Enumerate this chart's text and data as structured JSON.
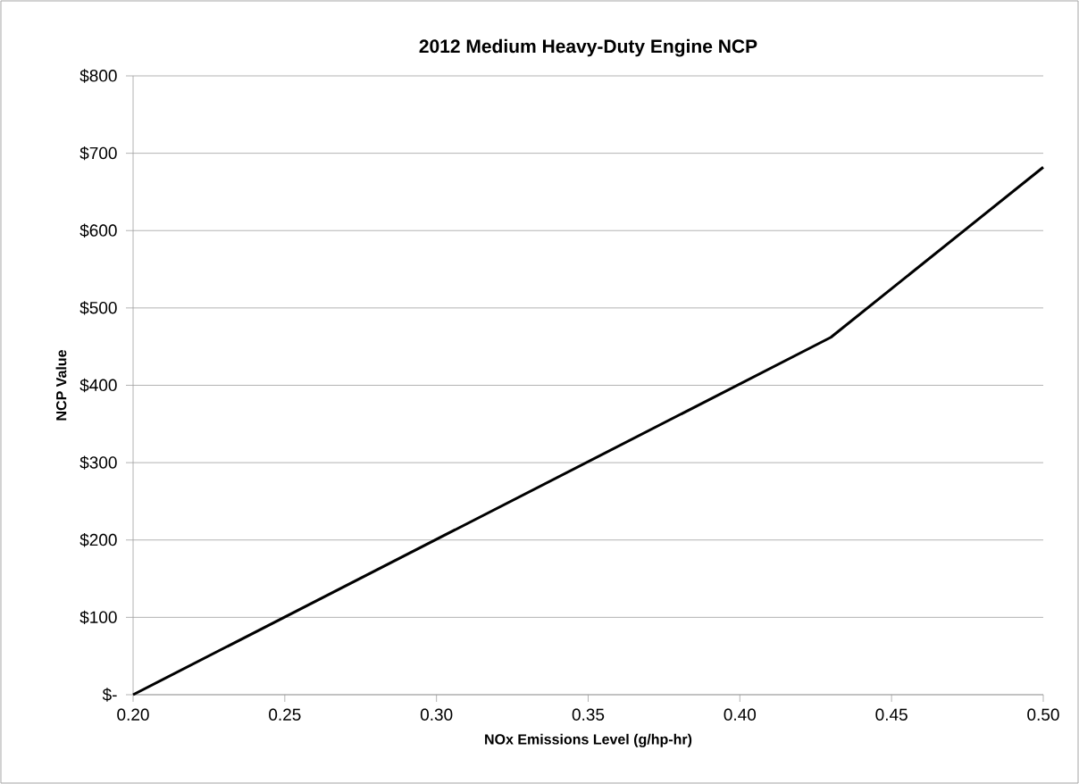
{
  "chart_data": {
    "type": "line",
    "title": "2012 Medium Heavy-Duty Engine NCP",
    "xlabel": "NOx Emissions Level (g/hp-hr)",
    "ylabel": "NCP Value",
    "x": [
      0.2,
      0.43,
      0.5
    ],
    "series": [
      {
        "color": "#000000",
        "values": [
          0,
          462,
          682
        ]
      }
    ],
    "xlim": [
      0.2,
      0.5
    ],
    "ylim": [
      0,
      800
    ],
    "xticks": [
      {
        "value": 0.2,
        "label": "0.20"
      },
      {
        "value": 0.25,
        "label": "0.25"
      },
      {
        "value": 0.3,
        "label": "0.30"
      },
      {
        "value": 0.35,
        "label": "0.35"
      },
      {
        "value": 0.4,
        "label": "0.40"
      },
      {
        "value": 0.45,
        "label": "0.45"
      },
      {
        "value": 0.5,
        "label": "0.50"
      }
    ],
    "yticks": [
      {
        "value": 0,
        "label": "$-"
      },
      {
        "value": 100,
        "label": "$100"
      },
      {
        "value": 200,
        "label": "$200"
      },
      {
        "value": 300,
        "label": "$300"
      },
      {
        "value": 400,
        "label": "$400"
      },
      {
        "value": 500,
        "label": "$500"
      },
      {
        "value": 600,
        "label": "$600"
      },
      {
        "value": 700,
        "label": "$700"
      },
      {
        "value": 800,
        "label": "$800"
      }
    ],
    "grid": "y",
    "marker": "none",
    "line_style": "solid"
  }
}
